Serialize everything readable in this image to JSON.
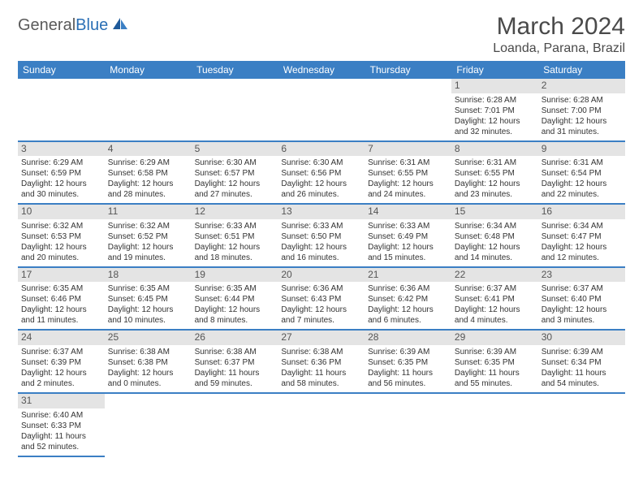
{
  "logo": {
    "part1": "General",
    "part2": "Blue"
  },
  "title": "March 2024",
  "location": "Loanda, Parana, Brazil",
  "header_bg": "#3b7fc4",
  "days": [
    "Sunday",
    "Monday",
    "Tuesday",
    "Wednesday",
    "Thursday",
    "Friday",
    "Saturday"
  ],
  "grid": [
    [
      null,
      null,
      null,
      null,
      null,
      {
        "n": "1",
        "sr": "6:28 AM",
        "ss": "7:01 PM",
        "dl": "12 hours and 32 minutes."
      },
      {
        "n": "2",
        "sr": "6:28 AM",
        "ss": "7:00 PM",
        "dl": "12 hours and 31 minutes."
      }
    ],
    [
      {
        "n": "3",
        "sr": "6:29 AM",
        "ss": "6:59 PM",
        "dl": "12 hours and 30 minutes."
      },
      {
        "n": "4",
        "sr": "6:29 AM",
        "ss": "6:58 PM",
        "dl": "12 hours and 28 minutes."
      },
      {
        "n": "5",
        "sr": "6:30 AM",
        "ss": "6:57 PM",
        "dl": "12 hours and 27 minutes."
      },
      {
        "n": "6",
        "sr": "6:30 AM",
        "ss": "6:56 PM",
        "dl": "12 hours and 26 minutes."
      },
      {
        "n": "7",
        "sr": "6:31 AM",
        "ss": "6:55 PM",
        "dl": "12 hours and 24 minutes."
      },
      {
        "n": "8",
        "sr": "6:31 AM",
        "ss": "6:55 PM",
        "dl": "12 hours and 23 minutes."
      },
      {
        "n": "9",
        "sr": "6:31 AM",
        "ss": "6:54 PM",
        "dl": "12 hours and 22 minutes."
      }
    ],
    [
      {
        "n": "10",
        "sr": "6:32 AM",
        "ss": "6:53 PM",
        "dl": "12 hours and 20 minutes."
      },
      {
        "n": "11",
        "sr": "6:32 AM",
        "ss": "6:52 PM",
        "dl": "12 hours and 19 minutes."
      },
      {
        "n": "12",
        "sr": "6:33 AM",
        "ss": "6:51 PM",
        "dl": "12 hours and 18 minutes."
      },
      {
        "n": "13",
        "sr": "6:33 AM",
        "ss": "6:50 PM",
        "dl": "12 hours and 16 minutes."
      },
      {
        "n": "14",
        "sr": "6:33 AM",
        "ss": "6:49 PM",
        "dl": "12 hours and 15 minutes."
      },
      {
        "n": "15",
        "sr": "6:34 AM",
        "ss": "6:48 PM",
        "dl": "12 hours and 14 minutes."
      },
      {
        "n": "16",
        "sr": "6:34 AM",
        "ss": "6:47 PM",
        "dl": "12 hours and 12 minutes."
      }
    ],
    [
      {
        "n": "17",
        "sr": "6:35 AM",
        "ss": "6:46 PM",
        "dl": "12 hours and 11 minutes."
      },
      {
        "n": "18",
        "sr": "6:35 AM",
        "ss": "6:45 PM",
        "dl": "12 hours and 10 minutes."
      },
      {
        "n": "19",
        "sr": "6:35 AM",
        "ss": "6:44 PM",
        "dl": "12 hours and 8 minutes."
      },
      {
        "n": "20",
        "sr": "6:36 AM",
        "ss": "6:43 PM",
        "dl": "12 hours and 7 minutes."
      },
      {
        "n": "21",
        "sr": "6:36 AM",
        "ss": "6:42 PM",
        "dl": "12 hours and 6 minutes."
      },
      {
        "n": "22",
        "sr": "6:37 AM",
        "ss": "6:41 PM",
        "dl": "12 hours and 4 minutes."
      },
      {
        "n": "23",
        "sr": "6:37 AM",
        "ss": "6:40 PM",
        "dl": "12 hours and 3 minutes."
      }
    ],
    [
      {
        "n": "24",
        "sr": "6:37 AM",
        "ss": "6:39 PM",
        "dl": "12 hours and 2 minutes."
      },
      {
        "n": "25",
        "sr": "6:38 AM",
        "ss": "6:38 PM",
        "dl": "12 hours and 0 minutes."
      },
      {
        "n": "26",
        "sr": "6:38 AM",
        "ss": "6:37 PM",
        "dl": "11 hours and 59 minutes."
      },
      {
        "n": "27",
        "sr": "6:38 AM",
        "ss": "6:36 PM",
        "dl": "11 hours and 58 minutes."
      },
      {
        "n": "28",
        "sr": "6:39 AM",
        "ss": "6:35 PM",
        "dl": "11 hours and 56 minutes."
      },
      {
        "n": "29",
        "sr": "6:39 AM",
        "ss": "6:35 PM",
        "dl": "11 hours and 55 minutes."
      },
      {
        "n": "30",
        "sr": "6:39 AM",
        "ss": "6:34 PM",
        "dl": "11 hours and 54 minutes."
      }
    ],
    [
      {
        "n": "31",
        "sr": "6:40 AM",
        "ss": "6:33 PM",
        "dl": "11 hours and 52 minutes."
      },
      null,
      null,
      null,
      null,
      null,
      null
    ]
  ],
  "labels": {
    "sunrise": "Sunrise: ",
    "sunset": "Sunset: ",
    "daylight": "Daylight: "
  }
}
